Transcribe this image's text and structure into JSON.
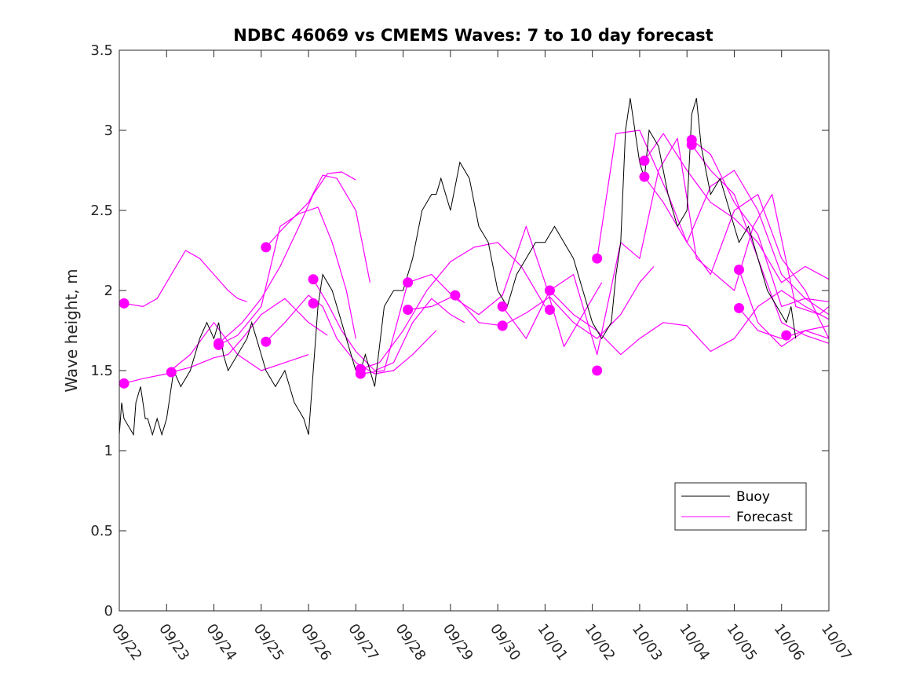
{
  "chart_data": {
    "type": "line",
    "title": "NDBC 46069 vs CMEMS Waves: 7 to 10 day forecast",
    "xlabel": "",
    "ylabel": "Wave height, m",
    "xlim": [
      0,
      15
    ],
    "ylim": [
      0,
      3.5
    ],
    "xtick_values": [
      0,
      1,
      2,
      3,
      4,
      5,
      6,
      7,
      8,
      9,
      10,
      11,
      12,
      13,
      14,
      15
    ],
    "xtick_labels": [
      "09/22",
      "09/23",
      "09/24",
      "09/25",
      "09/26",
      "09/27",
      "09/28",
      "09/29",
      "09/30",
      "10/01",
      "10/02",
      "10/03",
      "10/04",
      "10/05",
      "10/06",
      "10/07"
    ],
    "ytick_values": [
      0,
      0.5,
      1,
      1.5,
      2,
      2.5,
      3,
      3.5
    ],
    "ytick_labels": [
      "0",
      "0.5",
      "1",
      "1.5",
      "2",
      "2.5",
      "3",
      "3.5"
    ],
    "grid": false,
    "legend": {
      "position": "lower-right",
      "entries": [
        {
          "label": "Buoy",
          "color": "#000000"
        },
        {
          "label": "Forecast",
          "color": "#ff00ff"
        }
      ]
    },
    "colors": {
      "buoy": "#000000",
      "forecast": "#ff00ff",
      "axes": "#262626"
    },
    "series": [
      {
        "name": "Buoy",
        "x": [
          0,
          0.05,
          0.1,
          0.3,
          0.35,
          0.45,
          0.55,
          0.6,
          0.7,
          0.8,
          0.9,
          1.0,
          1.05,
          1.15,
          1.3,
          1.5,
          1.7,
          1.85,
          2.0,
          2.1,
          2.2,
          2.3,
          2.5,
          2.7,
          2.8,
          2.9,
          3.0,
          3.1,
          3.3,
          3.5,
          3.7,
          3.9,
          4.0,
          4.1,
          4.2,
          4.3,
          4.5,
          4.7,
          4.9,
          5.0,
          5.1,
          5.2,
          5.4,
          5.6,
          5.8,
          6.0,
          6.1,
          6.2,
          6.4,
          6.6,
          6.7,
          6.8,
          6.9,
          7.0,
          7.2,
          7.4,
          7.6,
          7.8,
          8.0,
          8.2,
          8.4,
          8.6,
          8.8,
          9.0,
          9.2,
          9.4,
          9.6,
          9.8,
          10.0,
          10.2,
          10.4,
          10.5,
          10.6,
          10.7,
          10.8,
          10.9,
          11.0,
          11.1,
          11.2,
          11.4,
          11.6,
          11.8,
          12.0,
          12.1,
          12.2,
          12.3,
          12.5,
          12.7,
          12.9,
          13.1,
          13.3,
          13.5,
          13.7,
          13.9,
          14.1,
          14.2,
          14.3
        ],
        "values": [
          1.1,
          1.3,
          1.2,
          1.1,
          1.3,
          1.4,
          1.2,
          1.2,
          1.1,
          1.2,
          1.1,
          1.2,
          1.3,
          1.5,
          1.4,
          1.5,
          1.7,
          1.8,
          1.7,
          1.8,
          1.6,
          1.5,
          1.6,
          1.7,
          1.8,
          1.7,
          1.6,
          1.5,
          1.4,
          1.5,
          1.3,
          1.2,
          1.1,
          1.5,
          1.9,
          2.1,
          2.0,
          1.8,
          1.6,
          1.5,
          1.5,
          1.6,
          1.4,
          1.9,
          2.0,
          2.0,
          2.1,
          2.2,
          2.5,
          2.6,
          2.6,
          2.7,
          2.6,
          2.5,
          2.8,
          2.7,
          2.4,
          2.3,
          2.0,
          1.9,
          2.1,
          2.2,
          2.3,
          2.3,
          2.4,
          2.3,
          2.2,
          2.0,
          1.8,
          1.7,
          1.8,
          2.1,
          2.3,
          3.0,
          3.2,
          3.0,
          2.8,
          2.7,
          3.0,
          2.9,
          2.6,
          2.4,
          2.5,
          3.1,
          3.2,
          2.9,
          2.6,
          2.7,
          2.5,
          2.3,
          2.4,
          2.2,
          2.0,
          1.9,
          1.8,
          1.9,
          1.7
        ]
      },
      {
        "name": "Forecast",
        "runs": [
          {
            "x": [
              0.1,
              0.5,
              0.8,
              1.1,
              1.4,
              1.7,
              2.0,
              2.3,
              2.5,
              2.7
            ],
            "values": [
              1.92,
              1.9,
              1.95,
              2.1,
              2.25,
              2.2,
              2.1,
              2.0,
              1.95,
              1.93
            ]
          },
          {
            "x": [
              0.1,
              0.5,
              1.0,
              1.5,
              2.0,
              2.5,
              3.0,
              3.5,
              4.0
            ],
            "values": [
              1.42,
              1.45,
              1.48,
              1.6,
              1.8,
              1.6,
              1.5,
              1.55,
              1.6
            ]
          },
          {
            "x": [
              1.1,
              1.5,
              2.0,
              2.3,
              2.6,
              3.0,
              3.5,
              4.0,
              4.4
            ],
            "values": [
              1.49,
              1.52,
              1.58,
              1.6,
              1.7,
              1.85,
              1.95,
              1.8,
              1.72
            ]
          },
          {
            "x": [
              2.1,
              2.5,
              3.0,
              3.4,
              3.8,
              4.2,
              4.5,
              4.8,
              5.0
            ],
            "values": [
              1.66,
              1.72,
              1.9,
              2.4,
              2.48,
              2.52,
              2.3,
              2.0,
              1.7
            ]
          },
          {
            "x": [
              3.1,
              3.5,
              4.0,
              4.3,
              4.6,
              5.0,
              5.3
            ],
            "values": [
              2.27,
              2.4,
              2.55,
              2.72,
              2.7,
              2.5,
              2.05
            ]
          },
          {
            "x": [
              2.1,
              2.6,
              3.0,
              3.4,
              3.8,
              4.1,
              4.4,
              4.7,
              5.0
            ],
            "values": [
              1.67,
              1.8,
              1.95,
              2.15,
              2.4,
              2.6,
              2.73,
              2.74,
              2.69
            ]
          },
          {
            "x": [
              4.1,
              4.4,
              4.7,
              5.0,
              5.4,
              5.8,
              6.2,
              6.6,
              7.0,
              7.3
            ],
            "values": [
              2.07,
              1.92,
              1.75,
              1.62,
              1.5,
              1.55,
              1.8,
              1.95,
              1.85,
              1.8
            ]
          },
          {
            "x": [
              3.1,
              3.5,
              4.0,
              4.3,
              4.6,
              5.0,
              5.4,
              5.8,
              6.2,
              6.7
            ],
            "values": [
              1.68,
              1.8,
              1.97,
              1.9,
              1.7,
              1.55,
              1.48,
              1.5,
              1.6,
              1.75
            ]
          },
          {
            "x": [
              5.1,
              5.5,
              6.0,
              6.5,
              7.0,
              7.5,
              8.0,
              8.5,
              9.0
            ],
            "values": [
              1.51,
              1.55,
              1.75,
              2.0,
              2.18,
              2.27,
              2.3,
              2.15,
              1.9
            ]
          },
          {
            "x": [
              5.1,
              5.6,
              6.1,
              6.6,
              7.1,
              7.6,
              8.1,
              8.6,
              9.0,
              9.4,
              9.8,
              10.2
            ],
            "values": [
              1.48,
              1.5,
              2.05,
              2.1,
              1.95,
              1.85,
              1.97,
              2.4,
              2.05,
              1.65,
              1.85,
              2.05
            ]
          },
          {
            "x": [
              6.1,
              6.6,
              7.1,
              7.6,
              8.1,
              8.6,
              9.1,
              9.6,
              10.1,
              10.6,
              11.0,
              11.3
            ],
            "values": [
              1.88,
              1.9,
              1.97,
              1.8,
              1.78,
              1.86,
              1.96,
              1.8,
              1.7,
              1.85,
              2.05,
              2.15
            ]
          },
          {
            "x": [
              8.1,
              8.6,
              9.1,
              9.6,
              10.1,
              10.6,
              11.0,
              11.4,
              11.8,
              12.2,
              12.6,
              13.0,
              13.4,
              13.8,
              14.3,
              14.8,
              15.0
            ],
            "values": [
              1.9,
              1.7,
              2.0,
              2.1,
              1.6,
              2.3,
              2.2,
              2.75,
              2.95,
              2.2,
              2.1,
              2.0,
              2.4,
              2.6,
              1.9,
              1.85,
              1.9
            ]
          },
          {
            "x": [
              9.1,
              9.6,
              10.1,
              10.6,
              11.0,
              11.5,
              12.0,
              12.5,
              13.0,
              13.5,
              14.0,
              14.5,
              15.0
            ],
            "values": [
              2.0,
              1.85,
              1.75,
              1.6,
              1.7,
              1.8,
              1.78,
              1.62,
              1.7,
              1.9,
              2.0,
              1.9,
              1.82
            ]
          },
          {
            "x": [
              10.1,
              10.5,
              11.0,
              11.3,
              11.6,
              12.0,
              12.5,
              13.0,
              13.5,
              14.0,
              14.5,
              15.0
            ],
            "values": [
              2.2,
              2.98,
              3.0,
              2.8,
              2.6,
              2.3,
              2.1,
              2.5,
              2.6,
              2.2,
              2.0,
              1.7
            ]
          },
          {
            "x": [
              11.1,
              11.5,
              12.0,
              12.5,
              13.0,
              13.5,
              14.0,
              14.5,
              15.0
            ],
            "values": [
              2.81,
              2.98,
              2.75,
              2.55,
              2.45,
              2.3,
              2.05,
              2.15,
              2.07
            ]
          },
          {
            "x": [
              11.1,
              11.5,
              12.0,
              12.5,
              13.0,
              13.5,
              14.0,
              14.5,
              15.0
            ],
            "values": [
              2.71,
              2.55,
              2.3,
              2.65,
              2.75,
              2.5,
              2.1,
              1.95,
              1.85
            ]
          },
          {
            "x": [
              12.1,
              12.5,
              13.0,
              13.5,
              14.0,
              14.5,
              15.0
            ],
            "values": [
              2.94,
              2.85,
              2.55,
              2.35,
              1.9,
              1.95,
              1.93
            ]
          },
          {
            "x": [
              12.1,
              12.5,
              13.0,
              13.5,
              14.0,
              14.5,
              15.0
            ],
            "values": [
              2.91,
              2.75,
              2.6,
              2.2,
              1.8,
              1.72,
              1.67
            ]
          },
          {
            "x": [
              13.1,
              13.5,
              14.0,
              14.5,
              15.0
            ],
            "values": [
              2.13,
              1.8,
              1.65,
              1.75,
              1.78
            ]
          },
          {
            "x": [
              13.1,
              13.5,
              14.0,
              14.5,
              15.0
            ],
            "values": [
              1.89,
              1.75,
              1.7,
              1.75,
              1.7
            ]
          }
        ],
        "start_markers": {
          "x": [
            0.1,
            0.1,
            1.1,
            2.1,
            2.1,
            3.1,
            3.1,
            4.1,
            4.1,
            5.1,
            5.1,
            6.1,
            6.1,
            7.1,
            8.1,
            8.1,
            8.1,
            9.1,
            9.1,
            10.1,
            10.1,
            11.1,
            11.1,
            12.1,
            12.1,
            13.1,
            13.1,
            14.1
          ],
          "values": [
            1.92,
            1.42,
            1.49,
            1.66,
            1.67,
            2.27,
            1.68,
            2.07,
            1.92,
            1.51,
            1.48,
            2.05,
            1.88,
            1.97,
            1.9,
            1.78,
            1.78,
            2.0,
            1.88,
            2.2,
            1.5,
            2.81,
            2.71,
            2.94,
            2.91,
            2.13,
            1.89,
            1.72
          ]
        }
      }
    ]
  }
}
